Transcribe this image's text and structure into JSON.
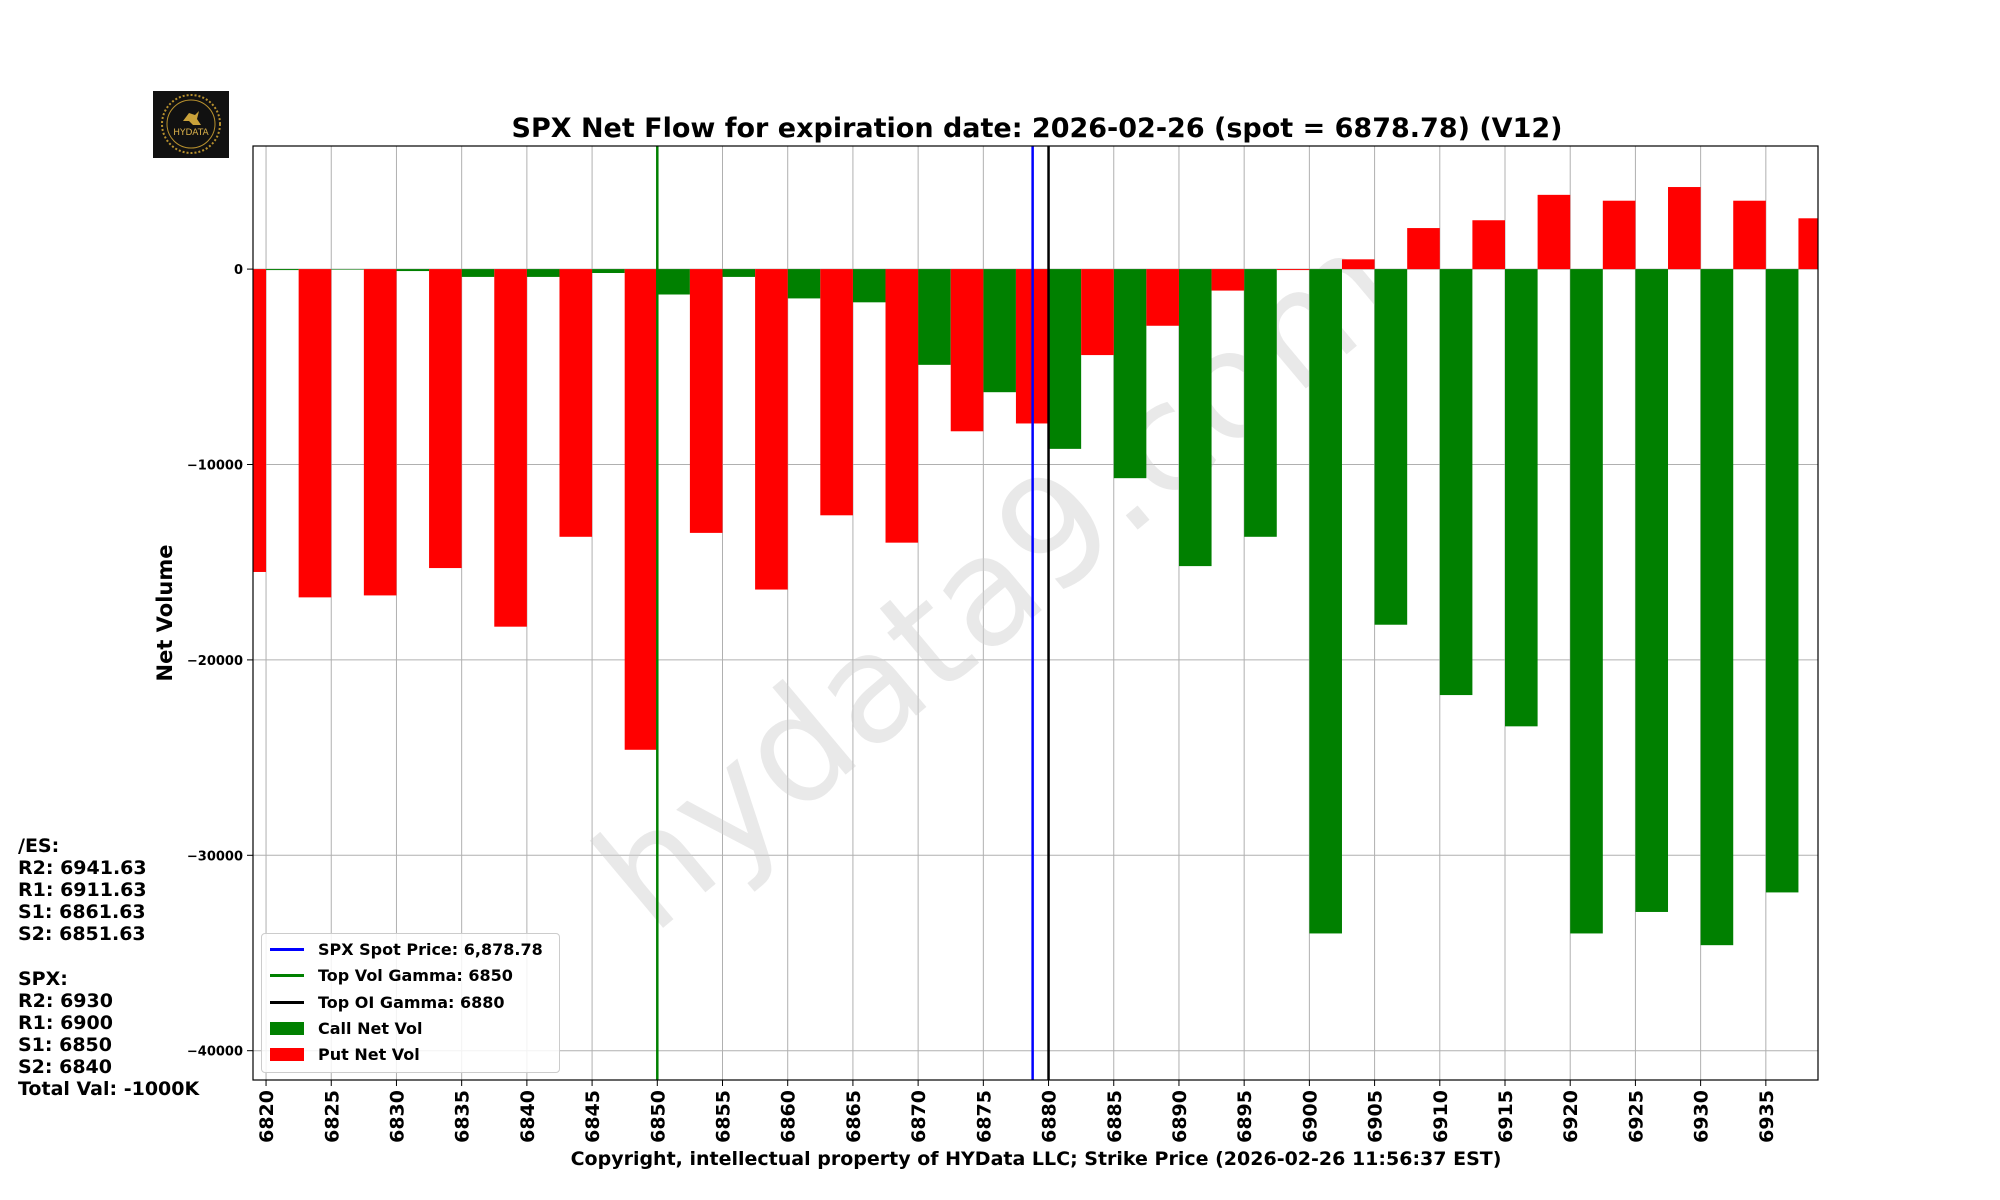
{
  "title": "SPX Net Flow for expiration date: 2026-02-26 (spot = 6878.78) (V12)",
  "watermark": "hydata9.com",
  "logo_text": "HYDATA",
  "colors": {
    "call": "#008000",
    "put": "#ff0000",
    "spot": "#0000ff",
    "top_vol_gamma": "#008000",
    "top_oi_gamma": "#000000",
    "grid": "#b0b0b0"
  },
  "legend": {
    "spot_label": "SPX Spot Price: 6,878.78",
    "top_vol_gamma_label": "Top Vol Gamma: 6850",
    "top_oi_gamma_label": "Top OI Gamma: 6880",
    "call_label": "Call Net Vol",
    "put_label": "Put Net Vol"
  },
  "levels": {
    "es_header": "/ES:",
    "es_r2": "R2: 6941.63",
    "es_r1": "R1: 6911.63",
    "es_s1": "S1: 6861.63",
    "es_s2": "S2: 6851.63",
    "spx_header": "SPX:",
    "spx_r2": "R2: 6930",
    "spx_r1": "R1: 6900",
    "spx_s1": "S1: 6850",
    "spx_s2": "S2: 6840",
    "total_val": "Total Val: -1000K"
  },
  "chart_data": {
    "type": "bar",
    "title": "SPX Net Flow for expiration date: 2026-02-26 (spot = 6878.78) (V12)",
    "xlabel": "Copyright, intellectual property of HYData LLC; Strike Price (2026-02-26 11:56:37 EST)",
    "ylabel": "Net Volume",
    "xlim": [
      6819,
      6939
    ],
    "ylim": [
      -41500,
      6300
    ],
    "yticks": [
      0,
      -10000,
      -20000,
      -30000,
      -40000
    ],
    "xticks": [
      6820,
      6825,
      6830,
      6835,
      6840,
      6845,
      6850,
      6855,
      6860,
      6865,
      6870,
      6875,
      6880,
      6885,
      6890,
      6895,
      6900,
      6905,
      6910,
      6915,
      6920,
      6925,
      6930,
      6935
    ],
    "bar_width": 2.5,
    "grid": true,
    "legend_position": "lower-left",
    "series": [
      {
        "name": "Call Net Vol",
        "offset": 1.25,
        "x": [
          6820,
          6825,
          6830,
          6835,
          6840,
          6845,
          6850,
          6855,
          6860,
          6865,
          6870,
          6875,
          6880,
          6885,
          6890,
          6895,
          6900,
          6905,
          6910,
          6915,
          6920,
          6925,
          6930,
          6935
        ],
        "values": [
          -50,
          0,
          -100,
          -400,
          -400,
          -200,
          -1300,
          -400,
          -1500,
          -1700,
          -4900,
          -6300,
          -9200,
          -10700,
          -15200,
          -13700,
          -34000,
          -18200,
          -21800,
          -23400,
          -34000,
          -32900,
          -34600,
          -31900
        ]
      },
      {
        "name": "Put Net Vol",
        "offset": -1.25,
        "x": [
          6820,
          6825,
          6830,
          6835,
          6840,
          6845,
          6850,
          6855,
          6860,
          6865,
          6870,
          6875,
          6880,
          6885,
          6890,
          6895,
          6900,
          6905,
          6910,
          6915,
          6920,
          6925,
          6930,
          6935,
          6940
        ],
        "values": [
          -15500,
          -16800,
          -16700,
          -15300,
          -18300,
          -13700,
          -24600,
          -13500,
          -16400,
          -12600,
          -14000,
          -8300,
          -7900,
          -4400,
          -2900,
          -1100,
          -50,
          500,
          2100,
          2500,
          3800,
          3500,
          4200,
          3500,
          2600
        ]
      }
    ],
    "vlines": [
      {
        "name": "SPX Spot Price",
        "x": 6878.78,
        "color": "#0000ff"
      },
      {
        "name": "Top Vol Gamma",
        "x": 6850,
        "color": "#008000"
      },
      {
        "name": "Top OI Gamma",
        "x": 6880,
        "color": "#000000"
      }
    ]
  }
}
